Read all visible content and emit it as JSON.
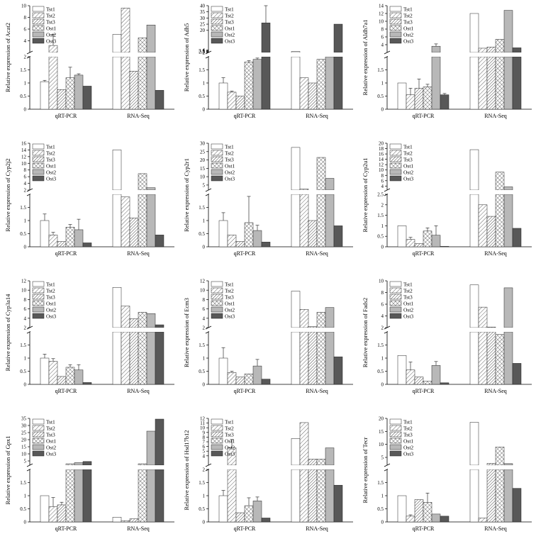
{
  "legend": [
    "Tst1",
    "Tst2",
    "Tst3",
    "Ost1",
    "Ost2",
    "Ost3"
  ],
  "categories": [
    "qRT-PCR",
    "RNA-Seq"
  ],
  "chart_data": [
    {
      "type": "bar",
      "ylabel": "Relative expression of Acat2",
      "categories": [
        "qRT-PCR",
        "RNA-Seq"
      ],
      "lower": {
        "range": [
          0,
          2
        ],
        "ticks": [
          0,
          0.5,
          1.0,
          1.5,
          2.0
        ]
      },
      "upper": {
        "range": [
          2,
          10
        ],
        "ticks": [
          4,
          6,
          8,
          10
        ]
      },
      "series": [
        {
          "name": "Tst1",
          "values": [
            1.05,
            5.1
          ],
          "err": [
            0.05,
            null
          ]
        },
        {
          "name": "Tst2",
          "values": [
            3.2,
            9.6
          ],
          "err": [
            1.9,
            null
          ]
        },
        {
          "name": "Tst3",
          "values": [
            0.75,
            1.45
          ],
          "err": [
            null,
            null
          ]
        },
        {
          "name": "Ost1",
          "values": [
            1.2,
            4.5
          ],
          "err": [
            0.4,
            null
          ]
        },
        {
          "name": "Ost2",
          "values": [
            1.3,
            6.7
          ],
          "err": [
            0.05,
            null
          ]
        },
        {
          "name": "Ost3",
          "values": [
            0.88,
            0.72
          ],
          "err": [
            null,
            null
          ]
        }
      ]
    },
    {
      "type": "bar",
      "ylabel": "Relative expression of Adh5",
      "categories": [
        "qRT-PCR",
        "RNA-Seq"
      ],
      "lower": {
        "range": [
          0,
          2
        ],
        "ticks": [
          0.0,
          0.5,
          1.0,
          1.5
        ]
      },
      "upper": {
        "range": [
          2,
          40
        ],
        "ticks": [
          2.0,
          2.5,
          3.0,
          3.5,
          4.0,
          20,
          25,
          30,
          35,
          40
        ]
      },
      "series": [
        {
          "name": "Tst1",
          "values": [
            1.0,
            2.8
          ],
          "err": [
            0.2,
            null
          ]
        },
        {
          "name": "Tst2",
          "values": [
            0.65,
            1.2
          ],
          "err": [
            0.04,
            null
          ]
        },
        {
          "name": "Tst3",
          "values": [
            0.5,
            1.0
          ],
          "err": [
            null,
            null
          ]
        },
        {
          "name": "Ost1",
          "values": [
            1.8,
            1.9
          ],
          "err": [
            0.05,
            null
          ]
        },
        {
          "name": "Ost2",
          "values": [
            1.9,
            2.0
          ],
          "err": [
            0.05,
            null
          ]
        },
        {
          "name": "Ost3",
          "values": [
            26,
            25
          ],
          "err": [
            14,
            null
          ]
        }
      ]
    },
    {
      "type": "bar",
      "ylabel": "Relative expression of Aldh7a1",
      "categories": [
        "qRT-PCR",
        "RNA-Seq"
      ],
      "lower": {
        "range": [
          0,
          2
        ],
        "ticks": [
          0.0,
          0.5,
          1.0,
          1.5
        ]
      },
      "upper": {
        "range": [
          2,
          14
        ],
        "ticks": [
          4,
          6,
          8,
          10,
          12,
          14
        ]
      },
      "series": [
        {
          "name": "Tst1",
          "values": [
            1.0,
            12.0
          ],
          "err": [
            null,
            null
          ]
        },
        {
          "name": "Tst2",
          "values": [
            0.55,
            3.1
          ],
          "err": [
            0.25,
            null
          ]
        },
        {
          "name": "Tst3",
          "values": [
            0.8,
            3.4
          ],
          "err": [
            0.35,
            null
          ]
        },
        {
          "name": "Ost1",
          "values": [
            0.85,
            5.4
          ],
          "err": [
            0.1,
            null
          ]
        },
        {
          "name": "Ost2",
          "values": [
            3.6,
            12.8
          ],
          "err": [
            0.6,
            null
          ]
        },
        {
          "name": "Ost3",
          "values": [
            0.55,
            3.2
          ],
          "err": [
            0.05,
            null
          ]
        }
      ]
    },
    {
      "type": "bar",
      "ylabel": "Relative expression of Cyp2j2",
      "categories": [
        "qRT-PCR",
        "RNA-Seq"
      ],
      "lower": {
        "range": [
          0,
          2
        ],
        "ticks": [
          0.0,
          0.5,
          1.0,
          1.5
        ]
      },
      "upper": {
        "range": [
          2,
          16
        ],
        "ticks": [
          2,
          4,
          6,
          8,
          10,
          12,
          14,
          16
        ]
      },
      "series": [
        {
          "name": "Tst1",
          "values": [
            1.0,
            14.0
          ],
          "err": [
            0.25,
            null
          ]
        },
        {
          "name": "Tst2",
          "values": [
            0.45,
            1.9
          ],
          "err": [
            0.1,
            null
          ]
        },
        {
          "name": "Tst3",
          "values": [
            0.2,
            1.1
          ],
          "err": [
            null,
            null
          ]
        },
        {
          "name": "Ost1",
          "values": [
            0.75,
            6.9
          ],
          "err": [
            0.1,
            null
          ]
        },
        {
          "name": "Ost2",
          "values": [
            0.65,
            2.7
          ],
          "err": [
            0.4,
            null
          ]
        },
        {
          "name": "Ost3",
          "values": [
            0.15,
            0.45
          ],
          "err": [
            null,
            null
          ]
        }
      ]
    },
    {
      "type": "bar",
      "ylabel": "Relative expression of Cyp2r1",
      "categories": [
        "qRT-PCR",
        "RNA-Seq"
      ],
      "lower": {
        "range": [
          0,
          2
        ],
        "ticks": [
          0.0,
          0.5,
          1.0,
          1.5
        ]
      },
      "upper": {
        "range": [
          2,
          30
        ],
        "ticks": [
          5,
          10,
          15,
          20,
          25,
          30
        ]
      },
      "series": [
        {
          "name": "Tst1",
          "values": [
            1.0,
            27.5
          ],
          "err": [
            0.3,
            null
          ]
        },
        {
          "name": "Tst2",
          "values": [
            0.45,
            2.6
          ],
          "err": [
            null,
            null
          ]
        },
        {
          "name": "Tst3",
          "values": [
            0.2,
            1.0
          ],
          "err": [
            null,
            null
          ]
        },
        {
          "name": "Ost1",
          "values": [
            0.92,
            21.5
          ],
          "err": [
            1.0,
            null
          ]
        },
        {
          "name": "Ost2",
          "values": [
            0.62,
            9.0
          ],
          "err": [
            0.2,
            null
          ]
        },
        {
          "name": "Ost3",
          "values": [
            0.18,
            0.8
          ],
          "err": [
            null,
            null
          ]
        }
      ]
    },
    {
      "type": "bar",
      "ylabel": "Relative expression of Cyp2u1",
      "categories": [
        "qRT-PCR",
        "RNA-Seq"
      ],
      "lower": {
        "range": [
          0,
          2.5
        ],
        "ticks": [
          0.0,
          0.5,
          1.0,
          1.5,
          2.0,
          2.5
        ]
      },
      "upper": {
        "range": [
          2.5,
          20
        ],
        "ticks": [
          4,
          6,
          8,
          10,
          12,
          14,
          16,
          18,
          20
        ]
      },
      "series": [
        {
          "name": "Tst1",
          "values": [
            1.0,
            17.6
          ],
          "err": [
            null,
            null
          ]
        },
        {
          "name": "Tst2",
          "values": [
            0.35,
            2.0
          ],
          "err": [
            0.1,
            null
          ]
        },
        {
          "name": "Tst3",
          "values": [
            0.15,
            1.45
          ],
          "err": [
            null,
            null
          ]
        },
        {
          "name": "Ost1",
          "values": [
            0.75,
            9.2
          ],
          "err": [
            0.15,
            null
          ]
        },
        {
          "name": "Ost2",
          "values": [
            0.55,
            3.7
          ],
          "err": [
            0.45,
            null
          ]
        },
        {
          "name": "Ost3",
          "values": [
            0.02,
            0.88
          ],
          "err": [
            null,
            null
          ]
        }
      ]
    },
    {
      "type": "bar",
      "ylabel": "Relative expression of Cyp3a14",
      "categories": [
        "qRT-PCR",
        "RNA-Seq"
      ],
      "lower": {
        "range": [
          0,
          2
        ],
        "ticks": [
          0.0,
          0.5,
          1.0,
          1.5
        ]
      },
      "upper": {
        "range": [
          2,
          12
        ],
        "ticks": [
          2,
          4,
          6,
          8,
          10,
          12
        ]
      },
      "series": [
        {
          "name": "Tst1",
          "values": [
            1.0,
            10.6
          ],
          "err": [
            0.15,
            null
          ]
        },
        {
          "name": "Tst2",
          "values": [
            0.88,
            6.6
          ],
          "err": [
            0.1,
            null
          ]
        },
        {
          "name": "Tst3",
          "values": [
            0.3,
            3.9
          ],
          "err": [
            null,
            null
          ]
        },
        {
          "name": "Ost1",
          "values": [
            0.65,
            5.3
          ],
          "err": [
            0.1,
            null
          ]
        },
        {
          "name": "Ost2",
          "values": [
            0.55,
            5.0
          ],
          "err": [
            0.2,
            null
          ]
        },
        {
          "name": "Ost3",
          "values": [
            0.07,
            2.6
          ],
          "err": [
            null,
            null
          ]
        }
      ]
    },
    {
      "type": "bar",
      "ylabel": "Relative expression of Ecm3",
      "categories": [
        "qRT-PCR",
        "RNA-Seq"
      ],
      "lower": {
        "range": [
          0,
          2
        ],
        "ticks": [
          0.0,
          0.5,
          1.0,
          1.5
        ]
      },
      "upper": {
        "range": [
          2,
          12
        ],
        "ticks": [
          2,
          4,
          6,
          8,
          10,
          12
        ]
      },
      "series": [
        {
          "name": "Tst1",
          "values": [
            1.0,
            9.8
          ],
          "err": [
            0.4,
            null
          ]
        },
        {
          "name": "Tst2",
          "values": [
            0.45,
            5.9
          ],
          "err": [
            0.05,
            null
          ]
        },
        {
          "name": "Tst3",
          "values": [
            0.28,
            2.2
          ],
          "err": [
            null,
            null
          ]
        },
        {
          "name": "Ost1",
          "values": [
            0.4,
            5.3
          ],
          "err": [
            null,
            null
          ]
        },
        {
          "name": "Ost2",
          "values": [
            0.7,
            6.3
          ],
          "err": [
            0.25,
            null
          ]
        },
        {
          "name": "Ost3",
          "values": [
            0.2,
            1.05
          ],
          "err": [
            null,
            null
          ]
        }
      ]
    },
    {
      "type": "bar",
      "ylabel": "Relative expression of Fads2",
      "categories": [
        "qRT-PCR",
        "RNA-Seq"
      ],
      "lower": {
        "range": [
          0,
          2
        ],
        "ticks": [
          0.0,
          0.5,
          1.0,
          1.5
        ]
      },
      "upper": {
        "range": [
          2,
          10
        ],
        "ticks": [
          2,
          4,
          6,
          8,
          10
        ]
      },
      "series": [
        {
          "name": "Tst1",
          "values": [
            1.1,
            9.3
          ],
          "err": [
            null,
            null
          ]
        },
        {
          "name": "Tst2",
          "values": [
            0.55,
            5.5
          ],
          "err": [
            0.3,
            null
          ]
        },
        {
          "name": "Tst3",
          "values": [
            0.28,
            2.1
          ],
          "err": [
            null,
            null
          ]
        },
        {
          "name": "Ost1",
          "values": [
            0.12,
            1.9
          ],
          "err": [
            null,
            null
          ]
        },
        {
          "name": "Ost2",
          "values": [
            0.72,
            8.8
          ],
          "err": [
            0.15,
            null
          ]
        },
        {
          "name": "Ost3",
          "values": [
            0.06,
            0.8
          ],
          "err": [
            null,
            null
          ]
        }
      ]
    },
    {
      "type": "bar",
      "ylabel": "Relative expression of Gpx1",
      "categories": [
        "qRT-PCR",
        "RNA-Seq"
      ],
      "lower": {
        "range": [
          0,
          2
        ],
        "ticks": [
          0.0,
          0.5,
          1.0,
          1.5
        ]
      },
      "upper": {
        "range": [
          2,
          35
        ],
        "ticks": [
          5,
          10,
          15,
          20,
          25,
          30,
          35
        ]
      },
      "series": [
        {
          "name": "Tst1",
          "values": [
            1.0,
            0.18
          ],
          "err": [
            null,
            null
          ]
        },
        {
          "name": "Tst2",
          "values": [
            0.58,
            0.05
          ],
          "err": [
            0.35,
            null
          ]
        },
        {
          "name": "Tst3",
          "values": [
            0.65,
            0.12
          ],
          "err": [
            0.1,
            null
          ]
        },
        {
          "name": "Ost1",
          "values": [
            3.0,
            3.0
          ],
          "err": [
            null,
            null
          ]
        },
        {
          "name": "Ost2",
          "values": [
            3.8,
            26.0
          ],
          "err": [
            null,
            null
          ]
        },
        {
          "name": "Ost3",
          "values": [
            4.6,
            34.5
          ],
          "err": [
            null,
            null
          ]
        }
      ]
    },
    {
      "type": "bar",
      "ylabel": "Relative expression of Hsd17b12",
      "categories": [
        "qRT-PCR",
        "RNA-Seq"
      ],
      "lower": {
        "range": [
          0,
          2
        ],
        "ticks": [
          0.0,
          0.5,
          1.0,
          1.5,
          2.0
        ]
      },
      "upper": {
        "range": [
          2,
          12
        ],
        "ticks": [
          4,
          5,
          6,
          7,
          8,
          9,
          10,
          11,
          12
        ]
      },
      "series": [
        {
          "name": "Tst1",
          "values": [
            1.0,
            7.7
          ],
          "err": [
            0.2,
            null
          ]
        },
        {
          "name": "Tst2",
          "values": [
            5.7,
            11.1
          ],
          "err": [
            1.8,
            null
          ]
        },
        {
          "name": "Tst3",
          "values": [
            0.35,
            3.3
          ],
          "err": [
            null,
            null
          ]
        },
        {
          "name": "Ost1",
          "values": [
            0.62,
            3.3
          ],
          "err": [
            0.3,
            null
          ]
        },
        {
          "name": "Ost2",
          "values": [
            0.8,
            5.7
          ],
          "err": [
            0.15,
            null
          ]
        },
        {
          "name": "Ost3",
          "values": [
            0.15,
            1.4
          ],
          "err": [
            null,
            null
          ]
        }
      ]
    },
    {
      "type": "bar",
      "ylabel": "Relative expression of Tecr",
      "categories": [
        "qRT-PCR",
        "RNA-Seq"
      ],
      "lower": {
        "range": [
          0,
          2
        ],
        "ticks": [
          0.0,
          0.5,
          1.0,
          1.5
        ]
      },
      "upper": {
        "range": [
          2,
          20
        ],
        "ticks": [
          5,
          10,
          15,
          20
        ]
      },
      "series": [
        {
          "name": "Tst1",
          "values": [
            1.0,
            18.5
          ],
          "err": [
            null,
            null
          ]
        },
        {
          "name": "Tst2",
          "values": [
            0.22,
            0.15
          ],
          "err": [
            0.05,
            null
          ]
        },
        {
          "name": "Tst3",
          "values": [
            0.85,
            2.7
          ],
          "err": [
            null,
            null
          ]
        },
        {
          "name": "Ost1",
          "values": [
            0.75,
            9.0
          ],
          "err": [
            0.35,
            null
          ]
        },
        {
          "name": "Ost2",
          "values": [
            0.3,
            2.6
          ],
          "err": [
            null,
            null
          ]
        },
        {
          "name": "Ost3",
          "values": [
            0.22,
            1.28
          ],
          "err": [
            null,
            null
          ]
        }
      ]
    }
  ]
}
